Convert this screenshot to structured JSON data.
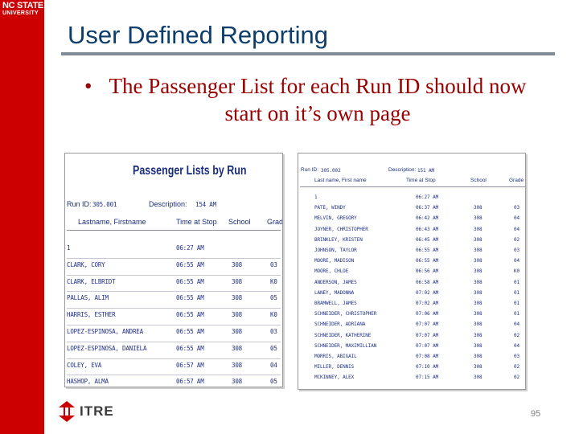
{
  "brand": {
    "line1": "NC STATE",
    "line2": "UNIVERSITY",
    "color": "#cc0000"
  },
  "slide": {
    "title": "User Defined Reporting",
    "bullet": "The Passenger List for each Run ID should now start on it’s own page",
    "page_number": "95",
    "footer_logo": "ITRE"
  },
  "report_a": {
    "title": "Passenger Lists by Run",
    "run_label": "Run ID:",
    "run_value": "305.001",
    "desc_label": "Description:",
    "desc_value": "154 AM",
    "columns": [
      "Lastname, Firstname",
      "Time at Stop",
      "School",
      "Grade"
    ],
    "rows": [
      [
        "1",
        "06:27 AM",
        "",
        ""
      ],
      [
        "CLARK, CORY",
        "06:55 AM",
        "308",
        "03"
      ],
      [
        "CLARK, ELBRIDT",
        "06:55 AM",
        "308",
        "K0"
      ],
      [
        "PALLAS, ALIM",
        "06:55 AM",
        "308",
        "05"
      ],
      [
        "HARRIS, ESTHER",
        "06:55 AM",
        "308",
        "K0"
      ],
      [
        "LOPEZ-ESPINOSA, ANDREA",
        "06:55 AM",
        "308",
        "03"
      ],
      [
        "LOPEZ-ESPINOSA, DANIELA",
        "06:55 AM",
        "308",
        "05"
      ],
      [
        "COLEY, EVA",
        "06:57 AM",
        "308",
        "04"
      ],
      [
        "HASHOP, ALMA",
        "06:57 AM",
        "308",
        "05"
      ]
    ]
  },
  "report_b": {
    "run_label": "Run ID:",
    "run_value": "305.002",
    "desc_label": "Description:",
    "desc_value": "151 AM",
    "columns": [
      "Last name, First name",
      "Time at Stop",
      "School",
      "Grade"
    ],
    "rows": [
      [
        "1",
        "06:27 AM",
        "",
        ""
      ],
      [
        "PATE, WINDY",
        "06:37 AM",
        "308",
        "03"
      ],
      [
        "MELVIN, GREGORY",
        "06:42 AM",
        "308",
        "04"
      ],
      [
        "JOYNER, CHRISTOPHER",
        "06:43 AM",
        "308",
        "04"
      ],
      [
        "BRINKLEY, KRISTEN",
        "06:45 AM",
        "308",
        "02"
      ],
      [
        "JOHNSON, TAYLOR",
        "06:55 AM",
        "308",
        "03"
      ],
      [
        "MOORE, MADISON",
        "06:55 AM",
        "308",
        "04"
      ],
      [
        "MOORE, CHLOE",
        "06:56 AM",
        "308",
        "K0"
      ],
      [
        "ANDERSON, JAMES",
        "06:58 AM",
        "308",
        "01"
      ],
      [
        "LANEY, MADONNA",
        "07:02 AM",
        "308",
        "01"
      ],
      [
        "BRAMWELL, JAMES",
        "07:02 AM",
        "308",
        "01"
      ],
      [
        "SCHNEIDER, CHRISTOPHER",
        "07:06 AM",
        "308",
        "01"
      ],
      [
        "SCHNEIDER, ADRIANA",
        "07:07 AM",
        "308",
        "04"
      ],
      [
        "SCHNEIDER, KATHERINE",
        "07:07 AM",
        "308",
        "02"
      ],
      [
        "SCHNEIDER, MAXIMILLIAN",
        "07:07 AM",
        "308",
        "04"
      ],
      [
        "MORRIS, ABIGAIL",
        "07:08 AM",
        "308",
        "03"
      ],
      [
        "MILLER, DENNIS",
        "07:10 AM",
        "308",
        "02"
      ],
      [
        "MCKINNEY, ALEX",
        "07:15 AM",
        "308",
        "02"
      ]
    ]
  }
}
